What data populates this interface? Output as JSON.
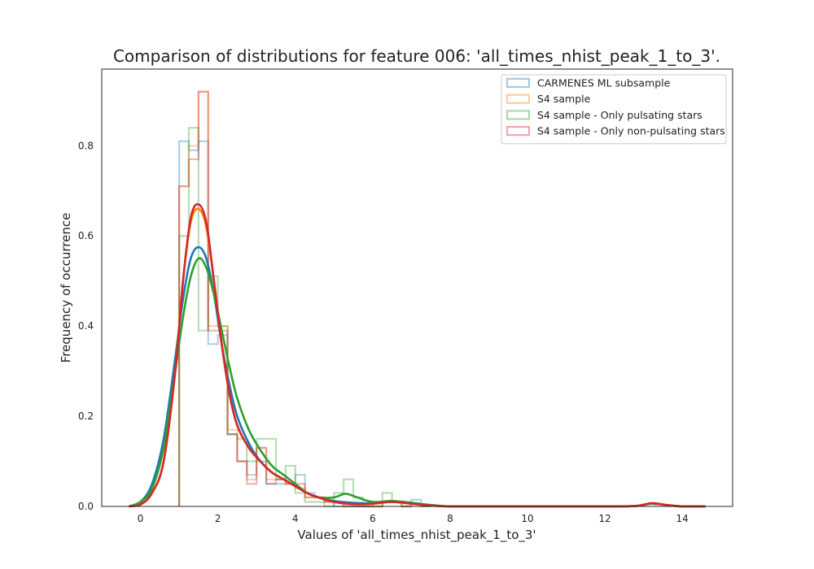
{
  "chart_data": {
    "type": "histogram",
    "title": "Comparison of distributions for feature 006: 'all_times_nhist_peak_1_to_3'.",
    "xlabel": "Values of 'all_times_nhist_peak_1_to_3'",
    "ylabel": "Frequency of occurrence",
    "xlim": [
      -1,
      15.3
    ],
    "ylim": [
      0,
      0.97
    ],
    "xticks": [
      0,
      2,
      4,
      6,
      8,
      10,
      12,
      14
    ],
    "yticks": [
      0.0,
      0.2,
      0.4,
      0.6,
      0.8
    ],
    "grid": false,
    "legend_position": "top-right",
    "series": [
      {
        "name": "CARMENES ML subsample",
        "color": "#1f77b4",
        "hist_edges": [
          1.0,
          1.25,
          1.5,
          1.75,
          2.0,
          2.25,
          2.5,
          2.75,
          3.0,
          3.25,
          3.5,
          3.75,
          4.0,
          4.25,
          4.5,
          4.75,
          5.0,
          5.25,
          5.5,
          5.75,
          6.0,
          6.25,
          6.5,
          6.75,
          7.0,
          7.25,
          7.5
        ],
        "hist_counts": [
          0.81,
          0.79,
          0.81,
          0.36,
          0.38,
          0.16,
          0.1,
          0.07,
          0.1,
          0.05,
          0.05,
          0.05,
          0.07,
          0.03,
          0.02,
          0.01,
          0.0,
          0.0,
          0.0,
          0.0,
          0.01,
          0.01,
          0.01,
          0.0,
          0.015,
          0.0
        ],
        "kde_x": [
          -0.3,
          0.0,
          0.3,
          0.6,
          0.9,
          1.1,
          1.3,
          1.5,
          1.7,
          1.9,
          2.1,
          2.3,
          2.5,
          2.8,
          3.1,
          3.4,
          3.7,
          4.0,
          4.3,
          4.6,
          5.0,
          5.5,
          6.0,
          6.5,
          7.0,
          7.5,
          8.0,
          9.0,
          10.0,
          11.0,
          12.0,
          12.8,
          13.2,
          13.6,
          14.0,
          14.6
        ],
        "kde_y": [
          0.0,
          0.01,
          0.05,
          0.15,
          0.33,
          0.46,
          0.55,
          0.575,
          0.55,
          0.47,
          0.36,
          0.27,
          0.2,
          0.14,
          0.1,
          0.075,
          0.06,
          0.045,
          0.03,
          0.02,
          0.012,
          0.008,
          0.007,
          0.01,
          0.006,
          0.003,
          0.0,
          0.0,
          0.0,
          0.0,
          0.0,
          0.001,
          0.006,
          0.003,
          0.0,
          0.0
        ]
      },
      {
        "name": "S4 sample",
        "color": "#ff7f0e",
        "hist_edges": [
          1.0,
          1.25,
          1.5,
          1.75,
          2.0,
          2.25,
          2.5,
          2.75,
          3.0,
          3.25,
          3.5,
          3.75,
          4.0,
          4.25,
          4.5,
          4.75,
          5.0,
          5.25,
          5.5,
          5.75,
          6.0,
          6.25,
          6.5,
          6.75,
          7.0
        ],
        "hist_counts": [
          0.71,
          0.8,
          0.92,
          0.4,
          0.4,
          0.17,
          0.1,
          0.06,
          0.13,
          0.06,
          0.06,
          0.05,
          0.04,
          0.02,
          0.02,
          0.01,
          0.01,
          0.0,
          0.0,
          0.0,
          0.0,
          0.01,
          0.01,
          0.0
        ],
        "kde_x": [
          -0.3,
          0.0,
          0.3,
          0.6,
          0.9,
          1.1,
          1.3,
          1.5,
          1.7,
          1.9,
          2.1,
          2.3,
          2.5,
          2.8,
          3.1,
          3.4,
          3.7,
          4.0,
          4.3,
          4.6,
          5.0,
          5.5,
          6.0,
          6.5,
          7.0,
          7.5,
          8.0,
          9.0,
          10.0,
          11.0,
          12.0,
          12.8,
          13.2,
          13.6,
          14.0,
          14.6
        ],
        "kde_y": [
          0.0,
          0.005,
          0.03,
          0.1,
          0.3,
          0.5,
          0.63,
          0.66,
          0.62,
          0.5,
          0.36,
          0.25,
          0.18,
          0.13,
          0.1,
          0.075,
          0.06,
          0.045,
          0.03,
          0.02,
          0.01,
          0.005,
          0.006,
          0.01,
          0.006,
          0.002,
          0.0,
          0.0,
          0.0,
          0.0,
          0.0,
          0.001,
          0.007,
          0.003,
          0.0,
          0.0
        ]
      },
      {
        "name": "S4 sample - Only pulsating stars",
        "color": "#2ca02c",
        "hist_edges": [
          1.0,
          1.25,
          1.5,
          1.75,
          2.0,
          2.25,
          2.5,
          2.75,
          3.0,
          3.25,
          3.5,
          3.75,
          4.0,
          4.25,
          4.5,
          4.75,
          5.0,
          5.25,
          5.5,
          5.75,
          6.0,
          6.25,
          6.5,
          6.75,
          7.0
        ],
        "hist_counts": [
          0.6,
          0.84,
          0.39,
          0.51,
          0.4,
          0.16,
          0.15,
          0.1,
          0.15,
          0.15,
          0.06,
          0.09,
          0.03,
          0.01,
          0.01,
          0.0,
          0.03,
          0.06,
          0.02,
          0.0,
          0.0,
          0.03,
          0.01,
          0.01
        ],
        "kde_x": [
          -0.3,
          0.0,
          0.3,
          0.6,
          0.9,
          1.1,
          1.3,
          1.5,
          1.7,
          1.9,
          2.1,
          2.3,
          2.5,
          2.8,
          3.1,
          3.4,
          3.7,
          4.0,
          4.3,
          4.6,
          5.0,
          5.3,
          5.6,
          6.0,
          6.5,
          7.0,
          7.5,
          8.0,
          9.0,
          10.0,
          11.0,
          12.0,
          12.8,
          13.2,
          13.6,
          14.0,
          14.6
        ],
        "kde_y": [
          0.0,
          0.01,
          0.04,
          0.13,
          0.3,
          0.42,
          0.51,
          0.55,
          0.53,
          0.47,
          0.39,
          0.31,
          0.24,
          0.17,
          0.125,
          0.09,
          0.07,
          0.05,
          0.03,
          0.02,
          0.02,
          0.028,
          0.02,
          0.01,
          0.012,
          0.008,
          0.003,
          0.0,
          0.0,
          0.0,
          0.0,
          0.0,
          0.001,
          0.006,
          0.003,
          0.0,
          0.0
        ]
      },
      {
        "name": "S4 sample - Only non-pulsating stars",
        "color": "#d62728",
        "hist_edges": [
          1.0,
          1.25,
          1.5,
          1.75,
          2.0,
          2.25,
          2.5,
          2.75,
          3.0,
          3.25,
          3.5,
          3.75,
          4.0,
          4.25,
          4.5,
          4.75,
          5.0,
          5.25,
          5.5,
          5.75,
          6.0,
          6.25,
          6.5,
          6.75,
          7.0
        ],
        "hist_counts": [
          0.71,
          0.77,
          0.92,
          0.39,
          0.39,
          0.16,
          0.1,
          0.05,
          0.13,
          0.05,
          0.06,
          0.05,
          0.05,
          0.02,
          0.02,
          0.01,
          0.01,
          0.0,
          0.0,
          0.0,
          0.0,
          0.01,
          0.01,
          0.0
        ],
        "kde_x": [
          -0.3,
          0.0,
          0.3,
          0.6,
          0.9,
          1.1,
          1.3,
          1.5,
          1.7,
          1.9,
          2.1,
          2.3,
          2.5,
          2.8,
          3.1,
          3.4,
          3.7,
          4.0,
          4.3,
          4.6,
          5.0,
          5.5,
          6.0,
          6.5,
          7.0,
          7.5,
          8.0,
          9.0,
          10.0,
          11.0,
          12.0,
          12.8,
          13.2,
          13.6,
          14.0,
          14.6
        ],
        "kde_y": [
          0.0,
          0.004,
          0.03,
          0.1,
          0.3,
          0.5,
          0.64,
          0.67,
          0.63,
          0.5,
          0.36,
          0.25,
          0.18,
          0.13,
          0.1,
          0.075,
          0.06,
          0.045,
          0.03,
          0.02,
          0.01,
          0.005,
          0.006,
          0.01,
          0.006,
          0.002,
          0.0,
          0.0,
          0.0,
          0.0,
          0.0,
          0.001,
          0.007,
          0.003,
          0.0,
          0.0
        ]
      }
    ]
  }
}
